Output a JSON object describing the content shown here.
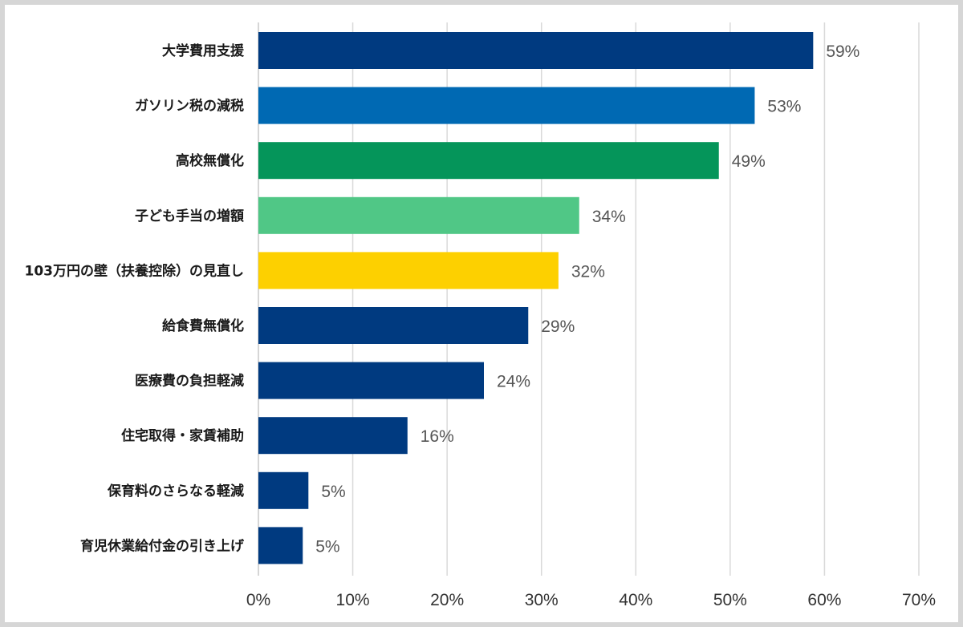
{
  "chart_data": {
    "type": "bar",
    "orientation": "horizontal",
    "categories": [
      "大学費用支援",
      "ガソリン税の減税",
      "高校無償化",
      "子ども手当の増額",
      "103万円の壁（扶養控除）の見直し",
      "給食費無償化",
      "医療費の負担軽減",
      "住宅取得・家賃補助",
      "保育料のさらなる軽減",
      "育児休業給付金の引き上げ"
    ],
    "values": [
      58.8,
      52.6,
      48.8,
      34.0,
      31.8,
      28.6,
      23.9,
      15.8,
      5.3,
      4.7
    ],
    "value_labels": [
      "59%",
      "53%",
      "49%",
      "34%",
      "32%",
      "29%",
      "24%",
      "16%",
      "5%",
      "5%"
    ],
    "colors": [
      "#003a80",
      "#0069b3",
      "#05955a",
      "#50c786",
      "#fdd000",
      "#003a80",
      "#003a80",
      "#003a80",
      "#003a80",
      "#003a80"
    ],
    "xlim": [
      0,
      70
    ],
    "ticks": [
      0,
      10,
      20,
      30,
      40,
      50,
      60,
      70
    ],
    "tick_labels": [
      "0%",
      "10%",
      "20%",
      "30%",
      "40%",
      "50%",
      "60%",
      "70%"
    ],
    "grid": true,
    "legend": "none"
  }
}
